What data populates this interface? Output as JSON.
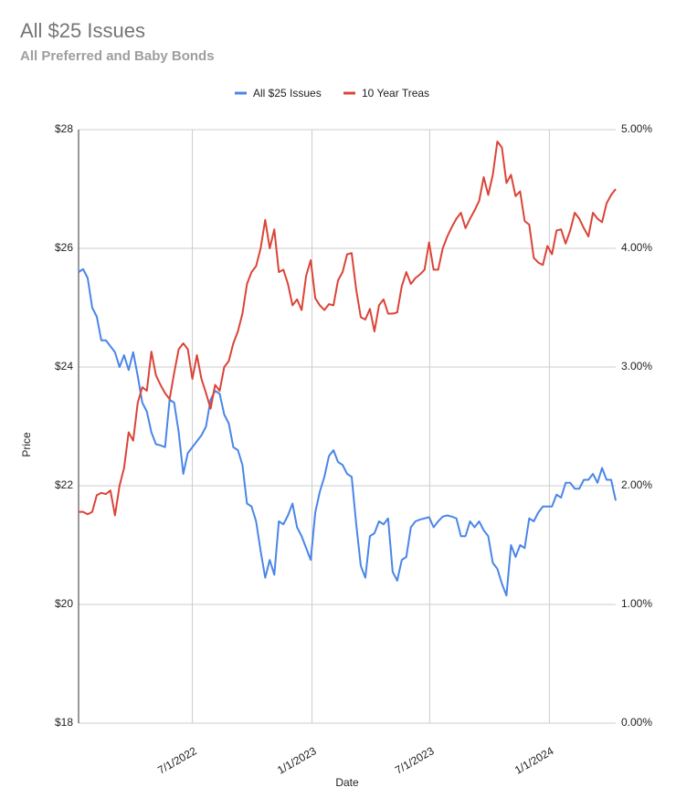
{
  "chart_data": {
    "type": "line",
    "title": "All $25 Issues",
    "subtitle": "All Preferred and Baby Bonds",
    "x_label": "Date",
    "y_label": "Price",
    "legend": "top",
    "grid": true,
    "x": [
      "1/7/2022",
      "1/14/2022",
      "1/21/2022",
      "1/28/2022",
      "2/4/2022",
      "2/11/2022",
      "2/18/2022",
      "2/25/2022",
      "3/4/2022",
      "3/11/2022",
      "3/18/2022",
      "3/25/2022",
      "4/1/2022",
      "4/8/2022",
      "4/15/2022",
      "4/22/2022",
      "4/29/2022",
      "5/6/2022",
      "5/13/2022",
      "5/20/2022",
      "5/27/2022",
      "6/3/2022",
      "6/10/2022",
      "6/17/2022",
      "6/24/2022",
      "7/1/2022",
      "7/8/2022",
      "7/15/2022",
      "7/22/2022",
      "7/29/2022",
      "8/5/2022",
      "8/12/2022",
      "8/19/2022",
      "8/26/2022",
      "9/2/2022",
      "9/9/2022",
      "9/16/2022",
      "9/23/2022",
      "9/30/2022",
      "10/7/2022",
      "10/14/2022",
      "10/21/2022",
      "10/28/2022",
      "11/4/2022",
      "11/11/2022",
      "11/18/2022",
      "11/25/2022",
      "12/2/2022",
      "12/9/2022",
      "12/16/2022",
      "12/23/2022",
      "12/30/2022",
      "1/6/2023",
      "1/13/2023",
      "1/20/2023",
      "1/27/2023",
      "2/3/2023",
      "2/10/2023",
      "2/17/2023",
      "2/24/2023",
      "3/3/2023",
      "3/10/2023",
      "3/17/2023",
      "3/24/2023",
      "3/31/2023",
      "4/7/2023",
      "4/14/2023",
      "4/21/2023",
      "4/28/2023",
      "5/5/2023",
      "5/12/2023",
      "5/19/2023",
      "5/26/2023",
      "6/2/2023",
      "6/9/2023",
      "6/16/2023",
      "6/23/2023",
      "6/30/2023",
      "7/7/2023",
      "7/14/2023",
      "7/21/2023",
      "7/28/2023",
      "8/4/2023",
      "8/11/2023",
      "8/18/2023",
      "8/25/2023",
      "9/1/2023",
      "9/8/2023",
      "9/15/2023",
      "9/22/2023",
      "9/29/2023",
      "10/6/2023",
      "10/13/2023",
      "10/20/2023",
      "10/27/2023",
      "11/3/2023",
      "11/10/2023",
      "11/17/2023",
      "11/24/2023",
      "12/1/2023",
      "12/8/2023",
      "12/15/2023",
      "12/22/2023",
      "12/29/2023",
      "1/5/2024",
      "1/12/2024",
      "1/19/2024",
      "1/26/2024",
      "2/2/2024",
      "2/9/2024",
      "2/16/2024",
      "2/23/2024",
      "3/1/2024",
      "3/8/2024",
      "3/15/2024",
      "3/22/2024",
      "3/29/2024",
      "4/5/2024",
      "4/12/2024"
    ],
    "series": [
      {
        "name": "All $25 Issues",
        "color": "#4a86e8",
        "axis": "y",
        "values": [
          25.6,
          25.65,
          25.5,
          25.0,
          24.85,
          24.45,
          24.45,
          24.35,
          24.25,
          24.0,
          24.2,
          23.95,
          24.25,
          23.85,
          23.4,
          23.25,
          22.9,
          22.7,
          22.68,
          22.65,
          23.45,
          23.4,
          22.9,
          22.2,
          22.55,
          22.65,
          22.75,
          22.85,
          23.0,
          23.45,
          23.6,
          23.55,
          23.2,
          23.05,
          22.65,
          22.6,
          22.35,
          21.7,
          21.65,
          21.4,
          20.9,
          20.45,
          20.75,
          20.5,
          21.4,
          21.35,
          21.5,
          21.7,
          21.3,
          21.15,
          20.95,
          20.75,
          21.55,
          21.9,
          22.15,
          22.5,
          22.6,
          22.4,
          22.35,
          22.2,
          22.15,
          21.35,
          20.65,
          20.45,
          21.15,
          21.2,
          21.4,
          21.35,
          21.45,
          20.55,
          20.4,
          20.75,
          20.8,
          21.3,
          21.4,
          21.43,
          21.45,
          21.47,
          21.3,
          21.4,
          21.48,
          21.5,
          21.48,
          21.45,
          21.15,
          21.15,
          21.4,
          21.3,
          21.4,
          21.25,
          21.15,
          20.7,
          20.6,
          20.35,
          20.15,
          21.0,
          20.8,
          21.0,
          20.95,
          21.45,
          21.4,
          21.55,
          21.65,
          21.65,
          21.65,
          21.85,
          21.8,
          22.05,
          22.05,
          21.95,
          21.95,
          22.1,
          22.1,
          22.2,
          22.05,
          22.3,
          22.1,
          22.1,
          21.75
        ]
      },
      {
        "name": "10 Year Treas",
        "color": "#db4437",
        "axis": "y2",
        "values": [
          1.78,
          1.78,
          1.76,
          1.78,
          1.92,
          1.94,
          1.93,
          1.96,
          1.75,
          2.0,
          2.15,
          2.45,
          2.38,
          2.7,
          2.83,
          2.8,
          3.13,
          2.93,
          2.85,
          2.78,
          2.73,
          2.95,
          3.15,
          3.2,
          3.15,
          2.9,
          3.1,
          2.9,
          2.78,
          2.65,
          2.85,
          2.8,
          3.0,
          3.05,
          3.2,
          3.3,
          3.45,
          3.7,
          3.8,
          3.85,
          4.0,
          4.24,
          4.0,
          4.16,
          3.8,
          3.82,
          3.7,
          3.52,
          3.57,
          3.48,
          3.77,
          3.9,
          3.58,
          3.52,
          3.48,
          3.53,
          3.52,
          3.73,
          3.8,
          3.95,
          3.96,
          3.65,
          3.42,
          3.4,
          3.49,
          3.3,
          3.52,
          3.57,
          3.45,
          3.45,
          3.46,
          3.68,
          3.8,
          3.7,
          3.75,
          3.78,
          3.82,
          4.05,
          3.82,
          3.82,
          4.0,
          4.1,
          4.18,
          4.25,
          4.3,
          4.17,
          4.25,
          4.32,
          4.4,
          4.6,
          4.45,
          4.62,
          4.9,
          4.85,
          4.55,
          4.62,
          4.44,
          4.48,
          4.23,
          4.2,
          3.92,
          3.88,
          3.86,
          4.02,
          3.95,
          4.15,
          4.16,
          4.04,
          4.15,
          4.3,
          4.25,
          4.17,
          4.1,
          4.3,
          4.25,
          4.22,
          4.38,
          4.45,
          4.5
        ]
      }
    ],
    "xlim": [
      "1/7/2022",
      "4/12/2024"
    ],
    "xticks": [
      "7/1/2022",
      "1/1/2023",
      "7/1/2023",
      "1/1/2024"
    ],
    "ylim": [
      18,
      28
    ],
    "yticks": [
      {
        "value": 18,
        "label": "$18"
      },
      {
        "value": 20,
        "label": "$20"
      },
      {
        "value": 22,
        "label": "$22"
      },
      {
        "value": 24,
        "label": "$24"
      },
      {
        "value": 26,
        "label": "$26"
      },
      {
        "value": 28,
        "label": "$28"
      }
    ],
    "y2lim": [
      0,
      5
    ],
    "y2ticks": [
      {
        "value": 0,
        "label": "0.00%"
      },
      {
        "value": 1,
        "label": "1.00%"
      },
      {
        "value": 2,
        "label": "2.00%"
      },
      {
        "value": 3,
        "label": "3.00%"
      },
      {
        "value": 4,
        "label": "4.00%"
      },
      {
        "value": 5,
        "label": "5.00%"
      }
    ]
  }
}
